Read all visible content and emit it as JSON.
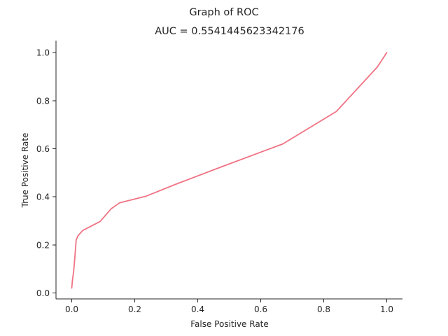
{
  "chart_data": {
    "type": "line",
    "suptitle": "Graph of ROC",
    "title": "AUC = 0.5541445623342176",
    "xlabel": "False Positive Rate",
    "ylabel": "True Positive Rate",
    "xlim": [
      -0.05,
      1.05
    ],
    "ylim": [
      -0.025,
      1.05
    ],
    "xticks": [
      0.0,
      0.2,
      0.4,
      0.6,
      0.8,
      1.0
    ],
    "xtick_labels": [
      "0.0",
      "0.2",
      "0.4",
      "0.6",
      "0.8",
      "1.0"
    ],
    "yticks": [
      0.0,
      0.2,
      0.4,
      0.6,
      0.8,
      1.0
    ],
    "ytick_labels": [
      "0.0",
      "0.2",
      "0.4",
      "0.6",
      "0.8",
      "1.0"
    ],
    "grid": false,
    "line_color": "#f07384",
    "series": [
      {
        "x": [
          0.0,
          0.002,
          0.004,
          0.006,
          0.008,
          0.01,
          0.012,
          0.014,
          0.02,
          0.035,
          0.09,
          0.125,
          0.152,
          0.235,
          0.33,
          0.47,
          0.67,
          0.84,
          0.97,
          1.0
        ],
        "y": [
          0.02,
          0.05,
          0.07,
          0.09,
          0.12,
          0.15,
          0.185,
          0.22,
          0.238,
          0.26,
          0.297,
          0.35,
          0.375,
          0.402,
          0.452,
          0.522,
          0.62,
          0.755,
          0.94,
          1.0
        ]
      }
    ]
  }
}
